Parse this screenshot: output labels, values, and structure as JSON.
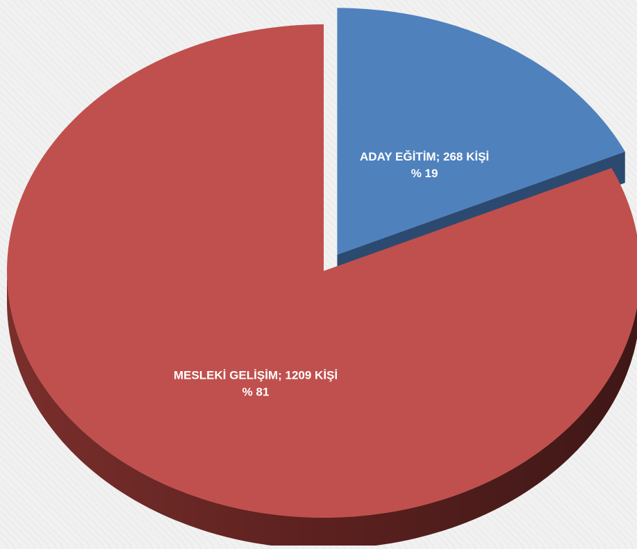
{
  "chart_data": {
    "type": "pie",
    "style": "3d-exploded",
    "slices": [
      {
        "category": "ADAY EĞİTİM",
        "value": 268,
        "unit": "KİŞİ",
        "percent": 19,
        "label_line1": "ADAY EĞİTİM; 268 KİŞİ",
        "label_line2": "% 19",
        "color": "#4f81bd",
        "side_color": "#2c4a70",
        "label_color": "#ffffff"
      },
      {
        "category": "MESLEKİ GELİŞİM",
        "value": 1209,
        "unit": "KİŞİ",
        "percent": 81,
        "label_line1": "MESLEKİ GELİŞİM; 1209 KİŞİ",
        "label_line2": "% 81",
        "color": "#c0504d",
        "side_color": "#6b2624",
        "label_color": "#ffffff"
      }
    ],
    "title": "",
    "legend": "none"
  }
}
